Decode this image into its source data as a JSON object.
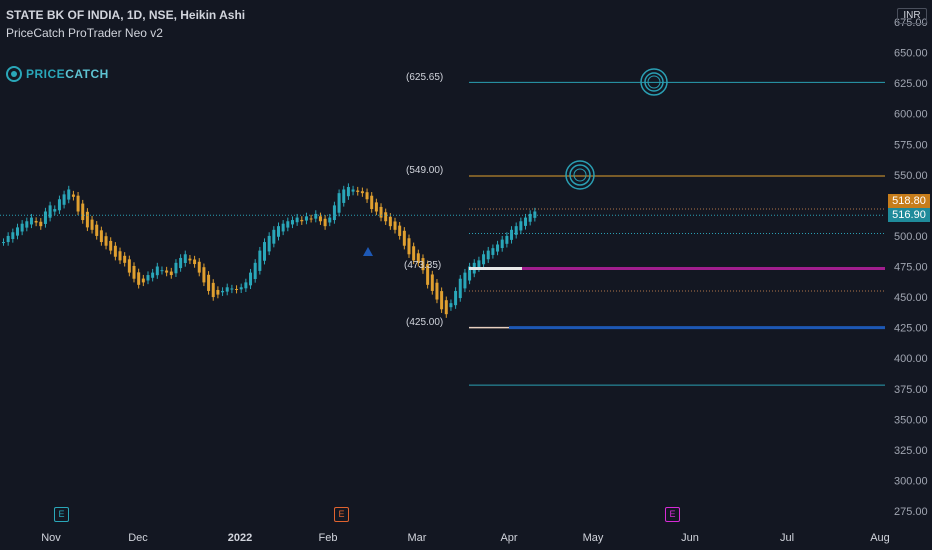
{
  "header": {
    "title": "STATE BK OF INDIA, 1D, NSE, Heikin Ashi",
    "indicator": "PriceCatch ProTrader Neo v2"
  },
  "logo": {
    "text_a": "PRICE",
    "text_b": "CATCH",
    "icon": "pricecatch-logo-icon"
  },
  "currency": "INR",
  "price_axis": [
    "675.00",
    "650.00",
    "625.00",
    "600.00",
    "575.00",
    "550.00",
    "525.00",
    "500.00",
    "475.00",
    "450.00",
    "425.00",
    "400.00",
    "375.00",
    "350.00",
    "325.00",
    "300.00",
    "275.00"
  ],
  "price_badges": {
    "upper": "518.80",
    "last": "516.90"
  },
  "level_labels": {
    "top": "(625.65)",
    "mid": "(549.00)",
    "pivot": "(473.35)",
    "low": "(425.00)"
  },
  "time_axis": [
    "Nov",
    "Dec",
    "2022",
    "Feb",
    "Mar",
    "Apr",
    "May",
    "Jun",
    "Jul",
    "Aug"
  ],
  "earnings_badges": [
    "E",
    "E",
    "E"
  ],
  "colors": {
    "background": "#131722",
    "up": "#2aa7b9",
    "down": "#e0a030",
    "orange_line": "#e2a12f",
    "teal_line": "#2a9fb3",
    "magenta_line": "#a11e8e",
    "blue_line": "#1d58b5",
    "last_badge": "#1f8b9b",
    "upper_badge": "#c77d1b"
  }
}
